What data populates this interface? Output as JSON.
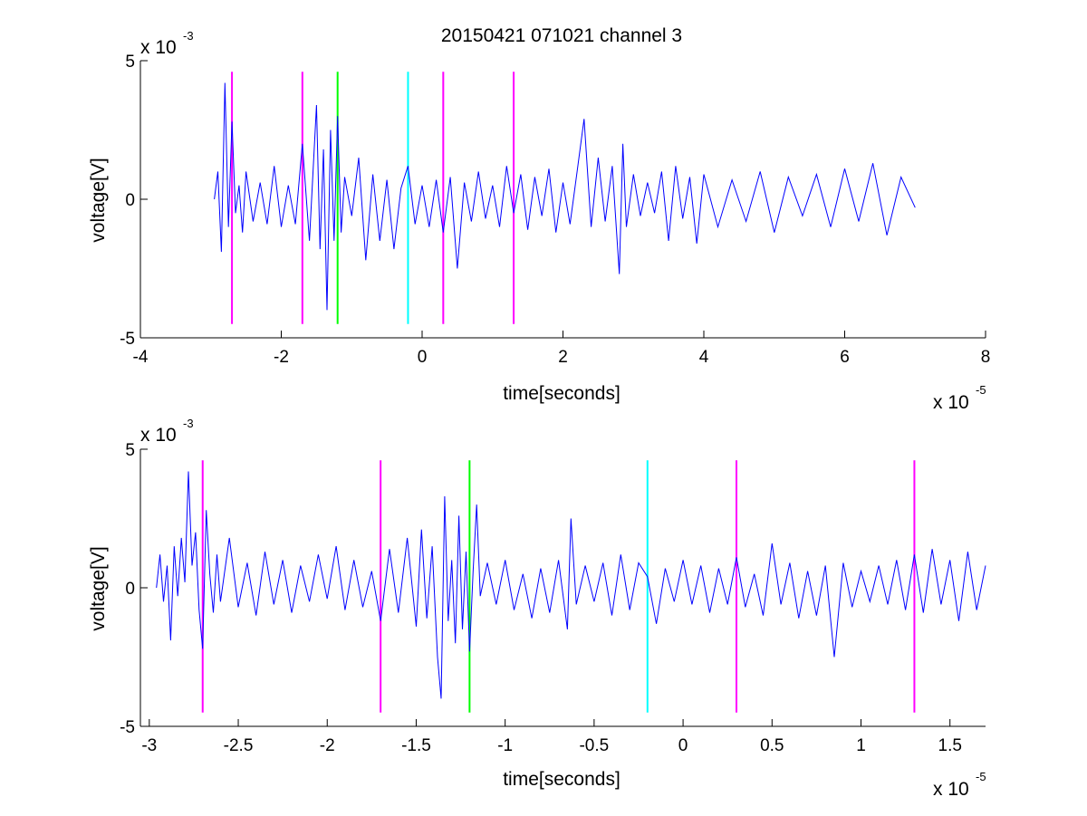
{
  "chart_data": [
    {
      "type": "line",
      "title": "20150421 071021 channel 3",
      "xlabel": "time[seconds]",
      "ylabel": "voltage[V]",
      "x_multiplier": "x 10",
      "x_multiplier_exponent": "-5",
      "y_multiplier": "x 10",
      "y_multiplier_exponent": "-3",
      "xlim": [
        -4,
        8
      ],
      "ylim": [
        -5,
        5
      ],
      "xticks": [
        -4,
        -2,
        0,
        2,
        4,
        6,
        8
      ],
      "xtick_labels": [
        "-4",
        "-2",
        "0",
        "2",
        "4",
        "6",
        "8"
      ],
      "yticks": [
        -5,
        0,
        5
      ],
      "ytick_labels": [
        "-5",
        "0",
        "5"
      ],
      "grid": false,
      "series": [
        {
          "color": "#0000ff",
          "x": [
            -2.95,
            -2.9,
            -2.85,
            -2.8,
            -2.75,
            -2.7,
            -2.65,
            -2.6,
            -2.55,
            -2.5,
            -2.4,
            -2.3,
            -2.2,
            -2.1,
            -2.0,
            -1.9,
            -1.8,
            -1.7,
            -1.6,
            -1.5,
            -1.45,
            -1.4,
            -1.35,
            -1.3,
            -1.25,
            -1.2,
            -1.15,
            -1.1,
            -1.0,
            -0.9,
            -0.8,
            -0.7,
            -0.6,
            -0.5,
            -0.4,
            -0.3,
            -0.2,
            -0.1,
            0.0,
            0.1,
            0.2,
            0.3,
            0.4,
            0.5,
            0.6,
            0.7,
            0.8,
            0.9,
            1.0,
            1.1,
            1.2,
            1.3,
            1.4,
            1.5,
            1.6,
            1.7,
            1.8,
            1.9,
            2.0,
            2.1,
            2.2,
            2.3,
            2.4,
            2.5,
            2.6,
            2.7,
            2.8,
            2.85,
            2.9,
            3.0,
            3.1,
            3.2,
            3.3,
            3.4,
            3.5,
            3.6,
            3.7,
            3.8,
            3.9,
            4.0,
            4.2,
            4.4,
            4.6,
            4.8,
            5.0,
            5.2,
            5.4,
            5.6,
            5.8,
            6.0,
            6.2,
            6.4,
            6.6,
            6.8,
            7.0
          ],
          "values": [
            0.0,
            1.0,
            -1.9,
            4.2,
            -1.0,
            2.8,
            -0.5,
            0.5,
            -1.2,
            1.0,
            -0.8,
            0.6,
            -0.9,
            1.2,
            -1.0,
            0.5,
            -0.9,
            2.0,
            -1.5,
            3.4,
            -1.8,
            1.8,
            -4.0,
            2.5,
            -1.5,
            3.0,
            -1.2,
            0.8,
            -0.6,
            1.5,
            -2.2,
            0.9,
            -1.5,
            0.7,
            -1.8,
            0.4,
            1.2,
            -0.9,
            0.5,
            -1.0,
            0.7,
            -1.2,
            0.8,
            -2.5,
            0.6,
            -0.8,
            1.0,
            -0.7,
            0.5,
            -1.0,
            1.2,
            -0.5,
            0.9,
            -1.1,
            0.8,
            -0.6,
            1.1,
            -1.2,
            0.6,
            -0.9,
            1.0,
            2.9,
            -1.0,
            1.5,
            -0.8,
            1.2,
            -2.7,
            2.0,
            -1.0,
            0.9,
            -0.6,
            0.6,
            -0.5,
            1.0,
            -1.5,
            1.2,
            -0.7,
            0.8,
            -1.6,
            0.9,
            -1.0,
            0.7,
            -0.8,
            1.0,
            -1.2,
            0.8,
            -0.6,
            0.9,
            -1.0,
            1.1,
            -0.8,
            1.3,
            -1.3,
            0.8,
            -0.3
          ]
        }
      ],
      "markers": [
        {
          "x": -2.7,
          "color": "#ff00ff"
        },
        {
          "x": -1.7,
          "color": "#ff00ff"
        },
        {
          "x": -1.2,
          "color": "#00ff00"
        },
        {
          "x": -0.2,
          "color": "#00ffff"
        },
        {
          "x": 0.3,
          "color": "#ff00ff"
        },
        {
          "x": 1.3,
          "color": "#ff00ff"
        }
      ],
      "marker_range": [
        -4.5,
        4.6
      ]
    },
    {
      "type": "line",
      "title": "",
      "xlabel": "time[seconds]",
      "ylabel": "voltage[V]",
      "x_multiplier": "x 10",
      "x_multiplier_exponent": "-5",
      "y_multiplier": "x 10",
      "y_multiplier_exponent": "-3",
      "xlim": [
        -3.05,
        1.7
      ],
      "ylim": [
        -5,
        5
      ],
      "xticks": [
        -3,
        -2.5,
        -2,
        -1.5,
        -1,
        -0.5,
        0,
        0.5,
        1,
        1.5
      ],
      "xtick_labels": [
        "-3",
        "-2.5",
        "-2",
        "-1.5",
        "-1",
        "-0.5",
        "0",
        "0.5",
        "1",
        "1.5"
      ],
      "yticks": [
        -5,
        0,
        5
      ],
      "ytick_labels": [
        "-5",
        "0",
        "5"
      ],
      "grid": false,
      "series": [
        {
          "color": "#0000ff",
          "x": [
            -2.96,
            -2.94,
            -2.92,
            -2.9,
            -2.88,
            -2.86,
            -2.84,
            -2.82,
            -2.8,
            -2.78,
            -2.76,
            -2.74,
            -2.72,
            -2.7,
            -2.68,
            -2.66,
            -2.64,
            -2.62,
            -2.6,
            -2.55,
            -2.5,
            -2.45,
            -2.4,
            -2.35,
            -2.3,
            -2.25,
            -2.2,
            -2.15,
            -2.1,
            -2.05,
            -2.0,
            -1.95,
            -1.9,
            -1.85,
            -1.8,
            -1.75,
            -1.7,
            -1.65,
            -1.6,
            -1.55,
            -1.5,
            -1.47,
            -1.44,
            -1.41,
            -1.38,
            -1.36,
            -1.34,
            -1.32,
            -1.3,
            -1.28,
            -1.26,
            -1.24,
            -1.22,
            -1.2,
            -1.18,
            -1.16,
            -1.14,
            -1.1,
            -1.05,
            -1.0,
            -0.95,
            -0.9,
            -0.85,
            -0.8,
            -0.75,
            -0.7,
            -0.65,
            -0.63,
            -0.6,
            -0.55,
            -0.5,
            -0.45,
            -0.4,
            -0.35,
            -0.3,
            -0.25,
            -0.2,
            -0.15,
            -0.1,
            -0.05,
            0.0,
            0.05,
            0.1,
            0.15,
            0.2,
            0.25,
            0.3,
            0.35,
            0.4,
            0.45,
            0.5,
            0.55,
            0.6,
            0.65,
            0.7,
            0.75,
            0.8,
            0.85,
            0.9,
            0.95,
            1.0,
            1.05,
            1.1,
            1.15,
            1.2,
            1.25,
            1.3,
            1.35,
            1.4,
            1.45,
            1.5,
            1.55,
            1.6,
            1.65,
            1.7
          ],
          "values": [
            0.0,
            1.2,
            -0.5,
            0.8,
            -1.9,
            1.5,
            -0.3,
            1.8,
            0.2,
            4.2,
            0.8,
            2.0,
            -0.8,
            -2.2,
            2.8,
            0.5,
            -0.9,
            1.2,
            -0.5,
            1.8,
            -0.7,
            0.9,
            -1.0,
            1.3,
            -0.6,
            1.0,
            -0.9,
            0.8,
            -0.5,
            1.2,
            -0.4,
            1.5,
            -0.8,
            1.0,
            -0.7,
            0.6,
            -1.2,
            1.4,
            -0.9,
            1.8,
            -1.4,
            2.1,
            -1.1,
            1.5,
            -2.5,
            -4.0,
            3.3,
            -1.2,
            1.0,
            -2.0,
            2.6,
            -1.5,
            1.3,
            -2.3,
            0.6,
            3.0,
            -0.3,
            0.9,
            -0.6,
            1.0,
            -0.8,
            0.5,
            -1.1,
            0.7,
            -0.9,
            1.0,
            -1.5,
            2.5,
            -0.6,
            0.8,
            -0.5,
            0.9,
            -1.0,
            1.2,
            -0.8,
            0.9,
            0.4,
            -1.3,
            0.7,
            -0.5,
            1.0,
            -0.6,
            0.8,
            -0.9,
            0.7,
            -0.6,
            1.1,
            -0.7,
            0.5,
            -1.0,
            1.6,
            -0.6,
            0.9,
            -1.1,
            0.6,
            -1.0,
            0.8,
            -2.5,
            0.9,
            -0.7,
            0.6,
            -0.5,
            0.8,
            -0.6,
            1.0,
            -0.8,
            1.2,
            -0.9,
            1.4,
            -0.6,
            1.0,
            -1.2,
            1.3,
            -0.8,
            0.8
          ]
        }
      ],
      "markers": [
        {
          "x": -2.7,
          "color": "#ff00ff"
        },
        {
          "x": -1.7,
          "color": "#ff00ff"
        },
        {
          "x": -1.2,
          "color": "#00ff00"
        },
        {
          "x": -0.2,
          "color": "#00ffff"
        },
        {
          "x": 0.3,
          "color": "#ff00ff"
        },
        {
          "x": 1.3,
          "color": "#ff00ff"
        }
      ],
      "marker_range": [
        -4.5,
        4.6
      ]
    }
  ]
}
